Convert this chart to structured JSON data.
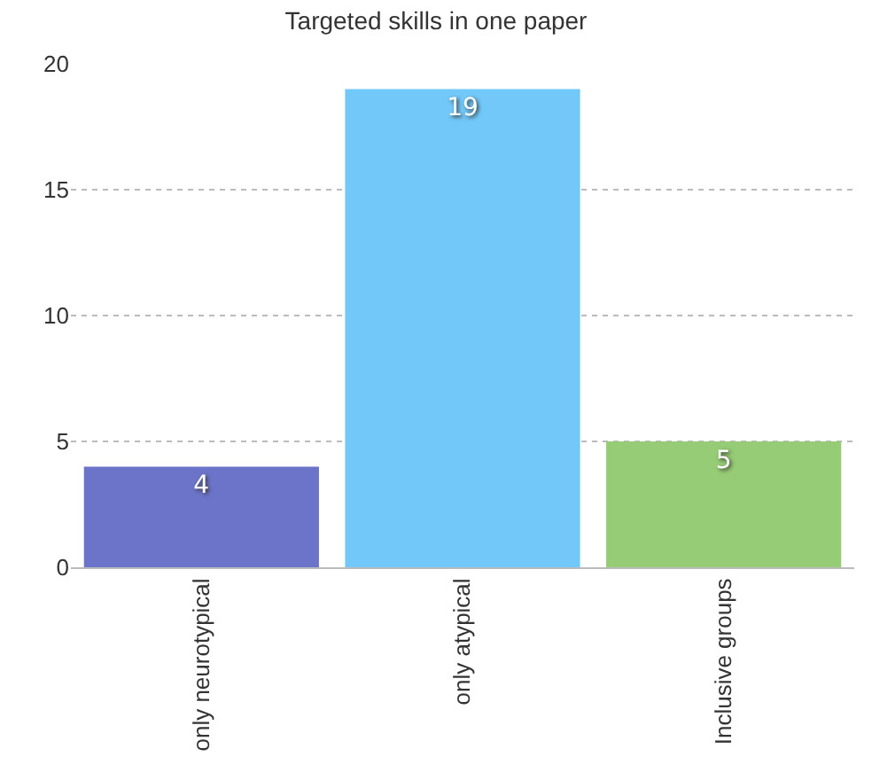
{
  "chart_data": {
    "type": "bar",
    "title": "Targeted skills in one paper",
    "categories": [
      "only neurotypical",
      "only atypical",
      "Inclusive groups"
    ],
    "values": [
      4,
      19,
      5
    ],
    "colors": [
      "#6c74c9",
      "#72c8f8",
      "#96cc75"
    ],
    "ylim": [
      0,
      20
    ],
    "yticks": [
      0,
      5,
      10,
      15,
      20
    ],
    "grid": "y",
    "data_labels": true
  }
}
